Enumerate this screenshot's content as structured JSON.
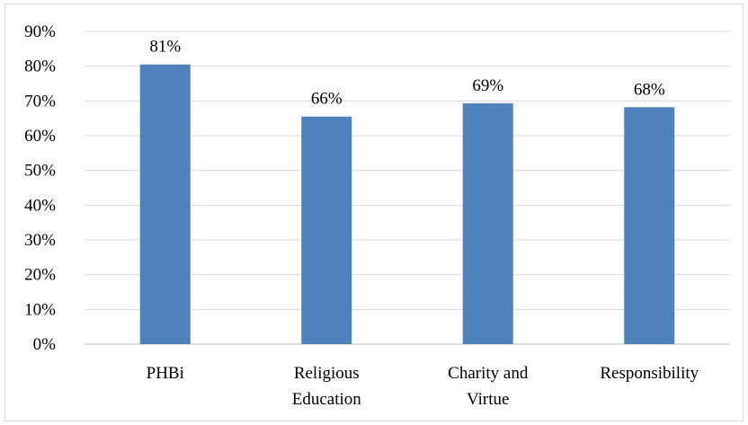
{
  "chart_data": {
    "type": "bar",
    "title": "",
    "xlabel": "",
    "ylabel": "",
    "categories": [
      [
        "PHBi"
      ],
      [
        "Religious",
        "Education"
      ],
      [
        "Charity and",
        "Virtue"
      ],
      [
        "Responsibility"
      ]
    ],
    "values": [
      81,
      66,
      69,
      68
    ],
    "data_labels": [
      "81%",
      "66%",
      "69%",
      "68%"
    ],
    "ylim": [
      0,
      90
    ],
    "y_ticks": [
      0,
      10,
      20,
      30,
      40,
      50,
      60,
      70,
      80,
      90
    ],
    "y_tick_labels": [
      "0%",
      "10%",
      "20%",
      "30%",
      "40%",
      "50%",
      "60%",
      "70%",
      "80%",
      "90%"
    ],
    "bar_values_exact": [
      80.5,
      65.5,
      69.3,
      68.2
    ],
    "grid": true,
    "legend": "none",
    "colors": {
      "bar": "#4f81bd",
      "grid": "#d9d9d9",
      "axis": "#bfbfbf"
    }
  }
}
